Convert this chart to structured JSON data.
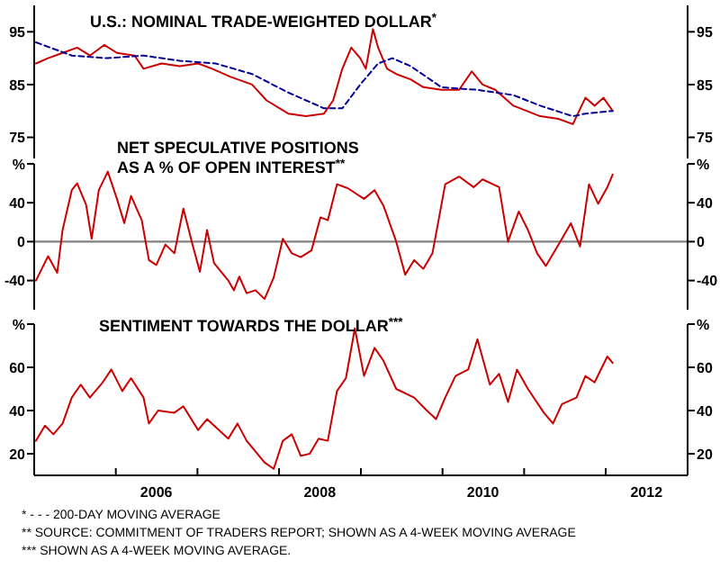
{
  "chart_data": [
    {
      "type": "line",
      "title": "U.S.: NOMINAL TRADE-WEIGHTED DOLLAR$^{*}$",
      "xlim": [
        "2005-01-01",
        "2013-01-01"
      ],
      "ylim": [
        71,
        100
      ],
      "yticks": [
        75,
        85,
        95
      ],
      "y2lim": [
        71,
        100
      ],
      "y2ticks": [
        75,
        85,
        95
      ],
      "tick_labels": "y",
      "series": [
        {
          "color": "#cc0000",
          "line_style": "solid",
          "x": [
            "2005-01-09",
            "2005-03-04",
            "2005-05-08",
            "2005-07-12",
            "2005-09-07",
            "2005-11-10",
            "2006-01-06",
            "2006-03-26",
            "2006-05-05",
            "2006-07-25",
            "2006-10-14",
            "2007-01-04",
            "2007-03-08",
            "2007-05-27",
            "2007-09-02",
            "2007-11-06",
            "2008-02-11",
            "2008-05-01",
            "2008-07-20",
            "2008-08-30",
            "2008-10-10",
            "2008-11-19",
            "2008-12-29",
            "2009-01-23",
            "2009-02-24",
            "2009-03-19",
            "2009-04-28",
            "2009-06-08",
            "2009-08-11",
            "2009-10-07",
            "2009-12-27",
            "2010-03-16",
            "2010-05-12",
            "2010-06-29",
            "2010-08-25",
            "2010-11-14",
            "2011-03-14",
            "2011-06-03",
            "2011-08-07",
            "2011-10-02",
            "2011-11-12",
            "2011-12-22",
            "2012-02-01"
          ],
          "values": [
            89,
            90,
            91,
            92,
            90.5,
            92.5,
            91,
            90.5,
            88,
            89,
            88.5,
            89,
            88,
            86.5,
            85,
            82,
            79.5,
            79,
            79.5,
            82,
            88,
            92,
            90,
            88,
            95.5,
            92,
            88,
            87,
            86,
            84.5,
            84,
            84,
            87.5,
            85,
            84,
            81,
            79,
            78.5,
            77.5,
            82.5,
            81,
            82.5,
            80
          ]
        },
        {
          "color": "#000099",
          "line_style": "dashed",
          "x": [
            "2005-01-09",
            "2005-06-18",
            "2005-11-26",
            "2006-05-05",
            "2006-10-14",
            "2007-03-23",
            "2007-09-02",
            "2008-02-11",
            "2008-07-20",
            "2008-10-10",
            "2008-12-29",
            "2009-03-19",
            "2009-05-22",
            "2009-08-11",
            "2009-12-27",
            "2010-06-06",
            "2010-11-14",
            "2011-03-14",
            "2011-08-07",
            "2011-10-02",
            "2012-02-01"
          ],
          "values": [
            93,
            90.5,
            90,
            90.5,
            89.5,
            89,
            87,
            83.5,
            80.5,
            80.5,
            85,
            89,
            90,
            88.5,
            84.5,
            84,
            83,
            81,
            79,
            79.5,
            80
          ]
        }
      ]
    },
    {
      "type": "line",
      "title": "NET SPECULATIVE POSITIONS\nAS A % OF OPEN INTEREST$^{**}$",
      "xlim": [
        "2005-01-01",
        "2013-01-01"
      ],
      "ylim": [
        -70,
        80
      ],
      "yticks": [
        {
          "value": 80,
          "label": "%"
        },
        40,
        0,
        -40
      ],
      "y2lim": [
        -70,
        80
      ],
      "y2ticks": [
        {
          "value": 80,
          "label": "%"
        },
        40,
        0,
        -40
      ],
      "tick_labels": "y",
      "ref_lines": [
        {
          "axis": "y",
          "value": 0,
          "color": "#808080"
        }
      ],
      "series": [
        {
          "color": "#cc0000",
          "line_style": "solid",
          "x": [
            "2005-01-09",
            "2005-03-04",
            "2005-04-14",
            "2005-05-08",
            "2005-06-18",
            "2005-07-12",
            "2005-08-21",
            "2005-09-15",
            "2005-10-17",
            "2005-11-26",
            "2006-01-06",
            "2006-02-08",
            "2006-03-10",
            "2006-04-27",
            "2006-05-29",
            "2006-07-01",
            "2006-08-11",
            "2006-09-20",
            "2006-10-30",
            "2006-12-10",
            "2007-01-12",
            "2007-02-13",
            "2007-03-16",
            "2007-05-19",
            "2007-06-13",
            "2007-07-07",
            "2007-08-09",
            "2007-09-18",
            "2007-10-28",
            "2007-12-08",
            "2008-01-18",
            "2008-02-27",
            "2008-04-07",
            "2008-05-25",
            "2008-07-04",
            "2008-08-06",
            "2008-09-16",
            "2008-11-03",
            "2009-01-15",
            "2009-03-03",
            "2009-04-12",
            "2009-06-08",
            "2009-07-18",
            "2009-08-27",
            "2009-10-07",
            "2009-11-17",
            "2010-01-13",
            "2010-03-16",
            "2010-05-20",
            "2010-06-29",
            "2010-09-11",
            "2010-10-21",
            "2010-12-08",
            "2011-01-18",
            "2011-02-28",
            "2011-04-08",
            "2011-06-19",
            "2011-07-29",
            "2011-09-08",
            "2011-10-18",
            "2011-11-28",
            "2012-01-08",
            "2012-02-01"
          ],
          "values": [
            -40,
            -15,
            -32,
            12,
            53,
            60,
            38,
            3,
            53,
            72,
            44,
            19,
            47,
            22,
            -19,
            -24,
            -3,
            -12,
            34,
            -3,
            -31,
            12,
            -22,
            -40,
            -50,
            -36,
            -53,
            -50,
            -59,
            -37,
            3,
            -12,
            -16,
            -9,
            25,
            22,
            59,
            55,
            44,
            53,
            37,
            0,
            -34,
            -19,
            -28,
            -12,
            59,
            67,
            56,
            64,
            56,
            0,
            31,
            12,
            -12,
            -25,
            3,
            19,
            -5,
            59,
            39,
            56,
            69
          ]
        }
      ]
    },
    {
      "type": "line",
      "title": "SENTIMENT TOWARDS THE DOLLAR$^{***}$",
      "xlim": [
        "2005-01-01",
        "2013-01-01"
      ],
      "ylim": [
        10,
        80
      ],
      "yticks": [
        {
          "value": 80,
          "label": "%"
        },
        60,
        40,
        20
      ],
      "y2lim": [
        10,
        80
      ],
      "y2ticks": [
        {
          "value": 80,
          "label": "%"
        },
        60,
        40,
        20
      ],
      "xticks": [
        {
          "value": "2006-01-01",
          "label": null
        },
        {
          "value": "2006-07-01",
          "label": "2006"
        },
        {
          "value": "2007-01-01",
          "label": null
        },
        {
          "value": "2008-01-01",
          "label": null
        },
        {
          "value": "2008-07-01",
          "label": "2008"
        },
        {
          "value": "2009-01-01",
          "label": null
        },
        {
          "value": "2010-01-01",
          "label": null
        },
        {
          "value": "2010-07-01",
          "label": "2010"
        },
        {
          "value": "2011-01-01",
          "label": null
        },
        {
          "value": "2012-01-01",
          "label": null
        },
        {
          "value": "2012-07-01",
          "label": "2012"
        }
      ],
      "annotations": [
        "* - - - 200-DAY MOVING AVERAGE",
        "** SOURCE: COMMITMENT OF TRADERS REPORT; SHOWN AS A 4-WEEK MOVING AVERAGE",
        "*** SHOWN AS A 4-WEEK MOVING AVERAGE."
      ],
      "series": [
        {
          "color": "#cc0000",
          "line_style": "solid",
          "x": [
            "2005-01-09",
            "2005-02-18",
            "2005-03-28",
            "2005-05-08",
            "2005-06-18",
            "2005-07-28",
            "2005-09-07",
            "2005-11-03",
            "2005-12-12",
            "2006-01-30",
            "2006-03-10",
            "2006-05-05",
            "2006-05-29",
            "2006-07-09",
            "2006-09-20",
            "2006-10-30",
            "2007-01-04",
            "2007-02-13",
            "2007-05-19",
            "2007-06-29",
            "2007-08-09",
            "2007-09-18",
            "2007-10-28",
            "2007-12-08",
            "2008-01-18",
            "2008-02-27",
            "2008-04-07",
            "2008-05-17",
            "2008-06-26",
            "2008-08-06",
            "2008-09-16",
            "2008-10-26",
            "2008-12-05",
            "2009-01-15",
            "2009-03-03",
            "2009-04-12",
            "2009-06-08",
            "2009-08-27",
            "2009-10-23",
            "2009-12-03",
            "2010-01-13",
            "2010-02-28",
            "2010-04-26",
            "2010-06-06",
            "2010-08-01",
            "2010-09-11",
            "2010-10-21",
            "2010-11-30",
            "2011-01-18",
            "2011-03-30",
            "2011-05-10",
            "2011-06-19",
            "2011-08-23",
            "2011-10-02",
            "2011-11-12",
            "2012-01-08",
            "2012-02-01"
          ],
          "values": [
            26,
            33,
            29,
            34,
            46,
            52,
            46,
            53,
            59,
            49,
            55,
            46,
            34,
            40,
            39,
            42,
            31,
            36,
            27,
            34,
            26,
            21,
            16,
            13,
            26,
            29,
            19,
            20,
            27,
            26,
            49,
            55,
            78,
            56,
            69,
            63,
            50,
            46,
            40,
            36,
            46,
            56,
            59,
            73,
            52,
            57,
            44,
            59,
            50,
            39,
            34,
            43,
            46,
            56,
            53,
            65,
            62
          ]
        }
      ]
    }
  ]
}
